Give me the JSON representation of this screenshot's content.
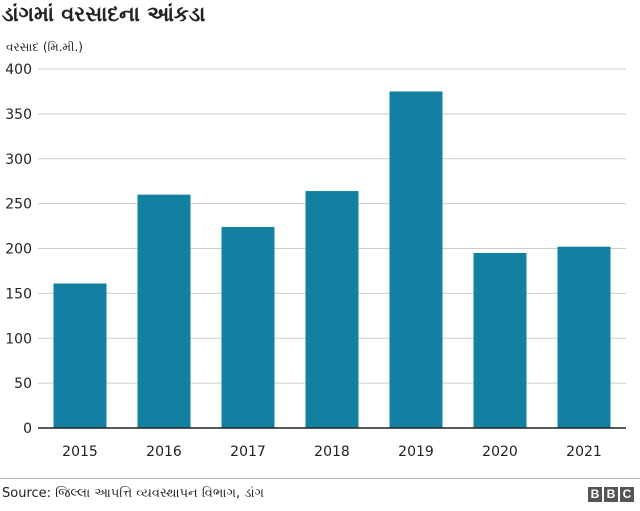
{
  "title": "ડાંગમાં વરસાદના આંકડા",
  "source": "Source: જિલ્લા આપત્તિ વ્યવસ્થાપન વિભાગ, ડાંગ",
  "logo": [
    "B",
    "B",
    "C"
  ],
  "colors": {
    "bar": "#1380A1",
    "grid": "#cccccc",
    "axis": "#222222"
  },
  "chart_data": {
    "type": "bar",
    "title": "ડાંગમાં વરસાદના આંકડા",
    "xlabel": "",
    "ylabel": "વરસાદ (મિ.મી.)",
    "categories": [
      "2015",
      "2016",
      "2017",
      "2018",
      "2019",
      "2020",
      "2021"
    ],
    "values": [
      161,
      260,
      224,
      264,
      375,
      195,
      202
    ],
    "ylim": [
      0,
      400
    ],
    "yticks": [
      0,
      50,
      100,
      150,
      200,
      250,
      300,
      350,
      400
    ],
    "grid": true,
    "legend": "none"
  }
}
